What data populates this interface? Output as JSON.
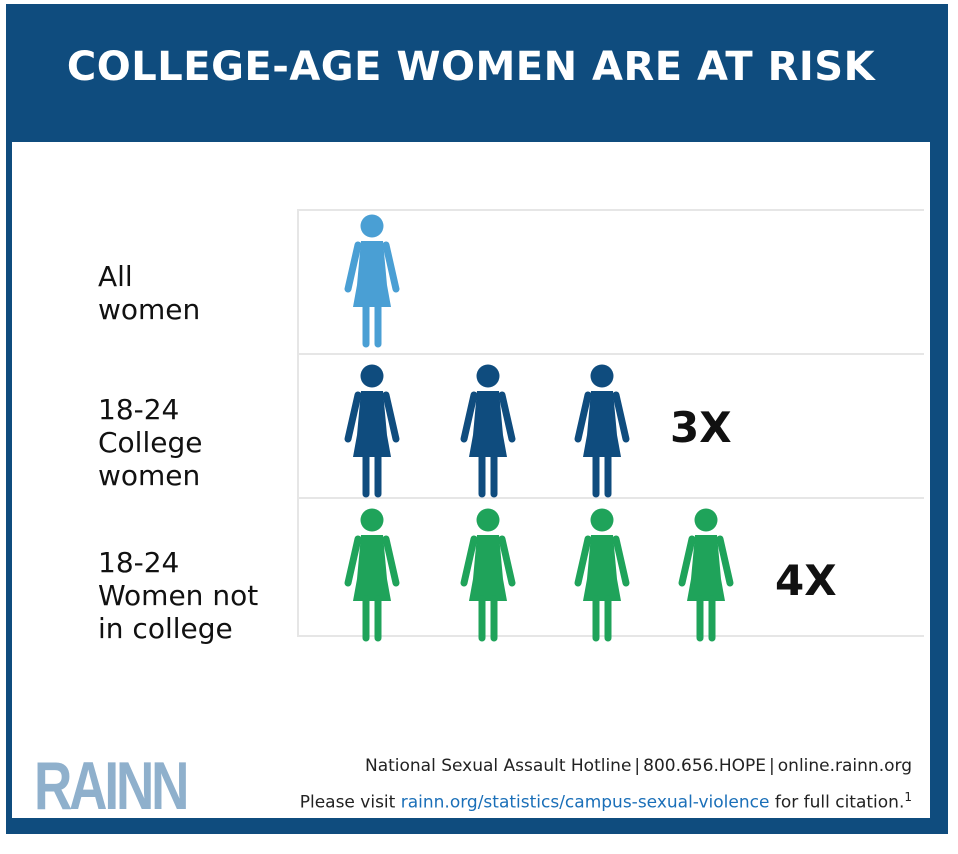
{
  "header": {
    "title": "COLLEGE-AGE WOMEN ARE AT RISK"
  },
  "chart_data": {
    "type": "pictograph",
    "categories": [
      "All women",
      "18-24 College women",
      "18-24 Women not in college"
    ],
    "category_lines": [
      [
        "All",
        "women"
      ],
      [
        "18-24",
        "College",
        "women"
      ],
      [
        "18-24",
        "Women not",
        "in college"
      ]
    ],
    "values": [
      1,
      3,
      4
    ],
    "value_labels": [
      "",
      "3X",
      "4X"
    ],
    "colors": [
      "#4a9fd4",
      "#0f4c7e",
      "#1fa35a"
    ]
  },
  "footer": {
    "logo": "RAINN",
    "hotline": "National Sexual Assault Hotline",
    "phone": "800.656.HOPE",
    "site": "online.rainn.org",
    "visit_prefix": "Please visit",
    "visit_link": "rainn.org/statistics/campus-sexual-violence",
    "visit_suffix": "for full citation.",
    "footnote": "1",
    "separator": "|"
  }
}
